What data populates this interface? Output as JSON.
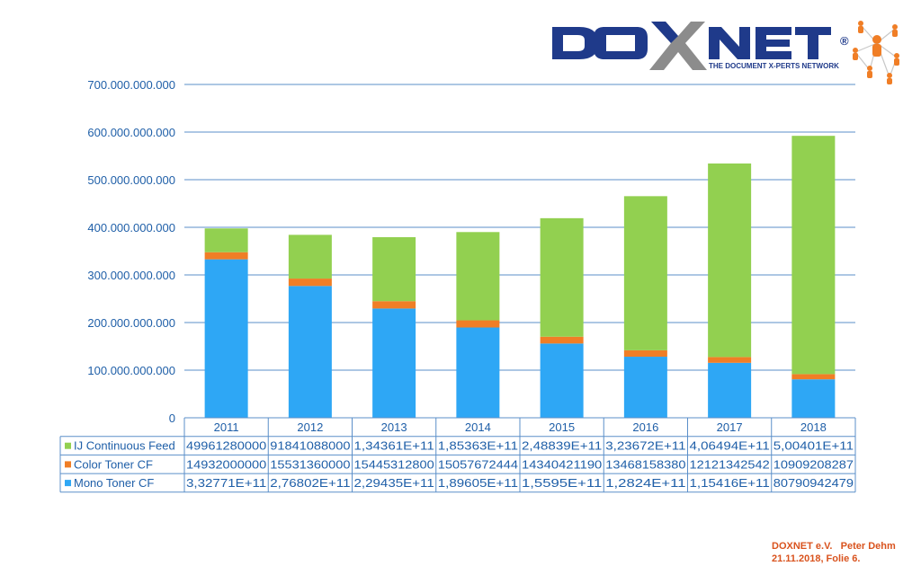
{
  "logo": {
    "wordmark": "DOXNET",
    "registered": "®",
    "tagline": "THE DOCUMENT X-PERTS NETWORK",
    "colors": {
      "navy": "#1f3a8a",
      "gray": "#8c8c8c",
      "orange": "#f07e26"
    },
    "icon": "people-network-icon"
  },
  "footer": {
    "line1": "DOXNET e.V.   Peter Dehm",
    "line2": "21.11.2018, Folie 6."
  },
  "chart_data": {
    "type": "bar",
    "stacked": true,
    "title": "",
    "xlabel": "",
    "ylabel": "",
    "ylim": [
      0,
      700000000000
    ],
    "yticks": [
      0,
      100000000000,
      200000000000,
      300000000000,
      400000000000,
      500000000000,
      600000000000,
      700000000000
    ],
    "ytick_labels": [
      "0",
      "100.000.000.000",
      "200.000.000.000",
      "300.000.000.000",
      "400.000.000.000",
      "500.000.000.000",
      "600.000.000.000",
      "700.000.000.000"
    ],
    "grid": true,
    "legend": "data-table-left",
    "categories": [
      "2011",
      "2012",
      "2013",
      "2014",
      "2015",
      "2016",
      "2017",
      "2018"
    ],
    "series": [
      {
        "name": "Mono Toner CF",
        "color": "#2ea7f5",
        "values": [
          332771000000,
          276802000000,
          229435000000,
          189605000000,
          155950000000,
          128240000000,
          115416000000,
          80790942479
        ],
        "table_labels": [
          "3,32771E+11",
          "2,76802E+11",
          "2,29435E+11",
          "1,89605E+11",
          "1,5595E+11",
          "1,2824E+11",
          "1,15416E+11",
          "80790942479"
        ]
      },
      {
        "name": "Color Toner CF",
        "color": "#f07e26",
        "values": [
          14932000000,
          15531360000,
          15445312800,
          15057672444,
          14340421190,
          13468158380,
          12121342542,
          10909208287
        ],
        "table_labels": [
          "14932000000",
          "15531360000",
          "15445312800",
          "15057672444",
          "14340421190",
          "13468158380",
          "12121342542",
          "10909208287"
        ]
      },
      {
        "name": "IJ Continuous Feed",
        "color": "#92d050",
        "values": [
          49961280000,
          91841088000,
          134361000000,
          185363000000,
          248839000000,
          323672000000,
          406494000000,
          500401000000
        ],
        "table_labels": [
          "49961280000",
          "91841088000",
          "1,34361E+11",
          "1,85363E+11",
          "2,48839E+11",
          "3,23672E+11",
          "4,06494E+11",
          "5,00401E+11"
        ]
      }
    ],
    "table_row_order": [
      "IJ Continuous Feed",
      "Color Toner CF",
      "Mono Toner CF"
    ],
    "axis_color": "#5b8fc9",
    "text_color": "#1f5fa8"
  }
}
